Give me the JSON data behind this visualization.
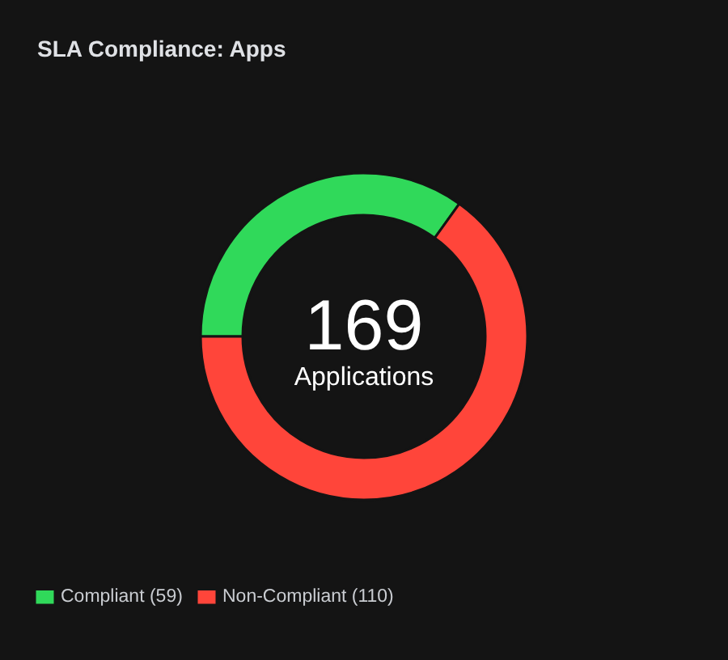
{
  "chart_data": {
    "type": "donut",
    "title": "SLA Compliance: Apps",
    "categories": [
      "Compliant (59)",
      "Non-Compliant (110)"
    ],
    "values": [
      59,
      110
    ],
    "colors": [
      "#30d95a",
      "#ff453a"
    ],
    "annotations": [
      "169",
      "Applications"
    ],
    "legend": "bottom left"
  }
}
